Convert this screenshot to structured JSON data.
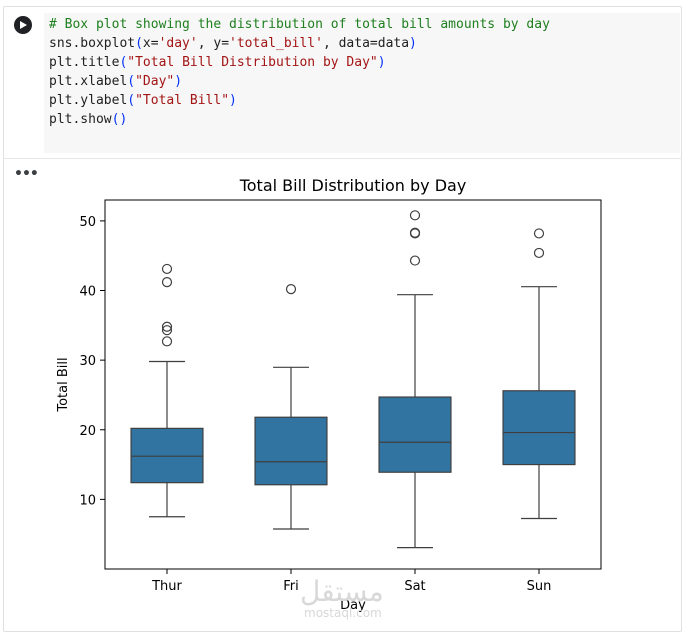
{
  "notebook": {
    "run_icon": "play-icon",
    "more_icon": "ellipsis-icon",
    "code_lines": [
      [
        {
          "t": "# Box plot showing the distribution of total bill amounts by day",
          "c": "cmt"
        }
      ],
      [
        {
          "t": "sns.boxplot",
          "c": ""
        },
        {
          "t": "(",
          "c": "par"
        },
        {
          "t": "x=",
          "c": ""
        },
        {
          "t": "'day'",
          "c": "str"
        },
        {
          "t": ", y=",
          "c": ""
        },
        {
          "t": "'total_bill'",
          "c": "str"
        },
        {
          "t": ", data=data",
          "c": ""
        },
        {
          "t": ")",
          "c": "par"
        }
      ],
      [
        {
          "t": "plt.title",
          "c": ""
        },
        {
          "t": "(",
          "c": "par"
        },
        {
          "t": "\"Total Bill Distribution by Day\"",
          "c": "str"
        },
        {
          "t": ")",
          "c": "par"
        }
      ],
      [
        {
          "t": "plt.xlabel",
          "c": ""
        },
        {
          "t": "(",
          "c": "par"
        },
        {
          "t": "\"Day\"",
          "c": "str"
        },
        {
          "t": ")",
          "c": "par"
        }
      ],
      [
        {
          "t": "plt.ylabel",
          "c": ""
        },
        {
          "t": "(",
          "c": "par"
        },
        {
          "t": "\"Total Bill\"",
          "c": "str"
        },
        {
          "t": ")",
          "c": "par"
        }
      ],
      [
        {
          "t": "plt.show",
          "c": ""
        },
        {
          "t": "()",
          "c": "par"
        }
      ]
    ]
  },
  "chart_data": {
    "type": "box",
    "title": "Total Bill Distribution by Day",
    "xlabel": "Day",
    "ylabel": "Total Bill",
    "categories": [
      "Thur",
      "Fri",
      "Sat",
      "Sun"
    ],
    "ylim": [
      0,
      53
    ],
    "yticks": [
      10,
      20,
      30,
      40,
      50
    ],
    "grid": false,
    "legend": "none",
    "color": "#3274a1",
    "boxes": [
      {
        "category": "Thur",
        "whisker_low": 7.5,
        "q1": 12.4,
        "median": 16.2,
        "q3": 20.2,
        "whisker_high": 29.8,
        "outliers": [
          32.7,
          34.3,
          34.8,
          41.2,
          43.1
        ]
      },
      {
        "category": "Fri",
        "whisker_low": 5.75,
        "q1": 12.1,
        "median": 15.4,
        "q3": 21.8,
        "whisker_high": 28.97,
        "outliers": [
          40.2
        ]
      },
      {
        "category": "Sat",
        "whisker_low": 3.07,
        "q1": 13.9,
        "median": 18.2,
        "q3": 24.7,
        "whisker_high": 39.4,
        "outliers": [
          44.3,
          48.2,
          48.3,
          50.8
        ]
      },
      {
        "category": "Sun",
        "whisker_low": 7.25,
        "q1": 15.0,
        "median": 19.6,
        "q3": 25.6,
        "whisker_high": 40.55,
        "outliers": [
          45.4,
          48.2
        ]
      }
    ]
  },
  "watermark": {
    "arabic": "مستقل",
    "latin": "mostaql.com"
  }
}
